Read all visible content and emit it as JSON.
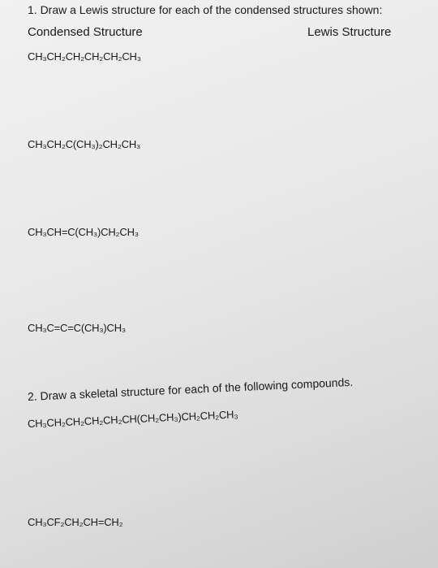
{
  "question1": {
    "prompt": "1. Draw a Lewis structure for each of the condensed structures shown:",
    "headers": [
      "Condensed Structure",
      "Lewis Structure"
    ],
    "items": [
      "CH₃CH₂CH₂CH₂CH₂CH₃",
      "CH₃CH₂C(CH₃)₂CH₂CH₃",
      "CH₃CH=C(CH₃)CH₂CH₃",
      "CH₃C=C=C(CH₃)CH₃"
    ]
  },
  "question2": {
    "prompt": "2. Draw a skeletal structure for each of the following compounds.",
    "items": [
      "CH₃CH₂CH₂CH₂CH₂CH(CH₂CH₃)CH₂CH₂CH₃",
      "CH₃CF₂CH₂CH=CH₂"
    ]
  }
}
